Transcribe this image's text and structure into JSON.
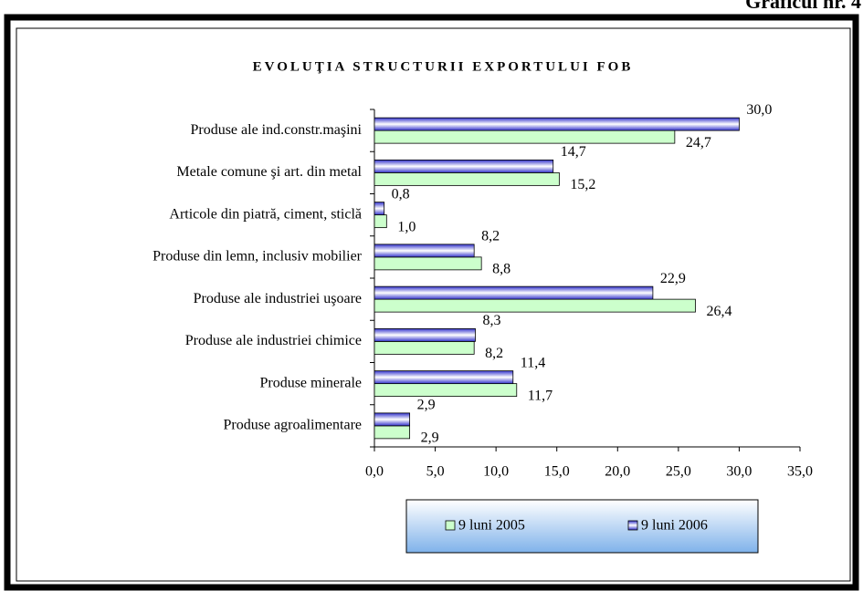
{
  "chart_data": {
    "type": "hbar",
    "header": "Graficul nr. 4",
    "title": "EVOLUŢIA STRUCTURII EXPORTULUI FOB",
    "categories": [
      "Produse ale ind.constr.maşini",
      "Metale comune şi art. din metal",
      "Articole din piatră, ciment, sticlă",
      "Produse din lemn, inclusiv mobilier",
      "Produse ale industriei uşoare",
      "Produse ale industriei chimice",
      "Produse minerale",
      "Produse agroalimentare"
    ],
    "series": [
      {
        "name": "9 luni 2005",
        "color": "#ccffcc",
        "values": [
          24.7,
          15.2,
          1.0,
          8.8,
          26.4,
          8.2,
          11.7,
          2.9
        ],
        "value_labels": [
          "24,7",
          "15,2",
          "1,0",
          "8,8",
          "26,4",
          "8,2",
          "11,7",
          "2,9"
        ]
      },
      {
        "name": "9 luni 2006",
        "color": "#3333cc",
        "values": [
          30.0,
          14.7,
          0.8,
          8.2,
          22.9,
          8.3,
          11.4,
          2.9
        ],
        "value_labels": [
          "30,0",
          "14,7",
          "0,8",
          "8,2",
          "22,9",
          "8,3",
          "11,4",
          "2,9"
        ]
      }
    ],
    "xlim": [
      0,
      35
    ],
    "xticks": [
      {
        "value": 0,
        "label": "0,0"
      },
      {
        "value": 5,
        "label": "5,0"
      },
      {
        "value": 10,
        "label": "10,0"
      },
      {
        "value": 15,
        "label": "15,0"
      },
      {
        "value": 20,
        "label": "20,0"
      },
      {
        "value": 25,
        "label": "25,0"
      },
      {
        "value": 30,
        "label": "30,0"
      },
      {
        "value": 35,
        "label": "35,0"
      }
    ],
    "legend": "bottom"
  }
}
